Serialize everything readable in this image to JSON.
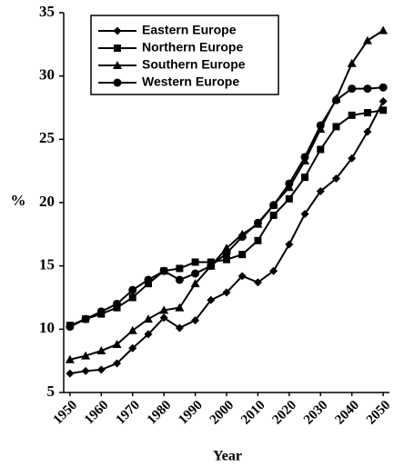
{
  "chart_data": {
    "type": "line",
    "x": [
      1950,
      1955,
      1960,
      1965,
      1970,
      1975,
      1980,
      1985,
      1990,
      1995,
      2000,
      2005,
      2010,
      2015,
      2020,
      2025,
      2030,
      2035,
      2040,
      2045,
      2050
    ],
    "xlabel": "Year",
    "ylabel": "%",
    "xlim": [
      1948,
      2052
    ],
    "xticks": [
      1950,
      1960,
      1970,
      1980,
      1990,
      2000,
      2010,
      2020,
      2030,
      2040,
      2050
    ],
    "ylim": [
      5,
      35
    ],
    "yticks": [
      5,
      10,
      15,
      20,
      25,
      30,
      35
    ],
    "series": [
      {
        "name": "Eastern Europe",
        "color": "#000000",
        "marker": "diamond",
        "values": [
          6.5,
          6.7,
          6.8,
          7.3,
          8.5,
          9.6,
          10.9,
          10.1,
          10.7,
          12.3,
          12.9,
          14.2,
          13.7,
          14.6,
          16.7,
          19.1,
          20.9,
          21.9,
          23.5,
          25.6,
          28.0
        ]
      },
      {
        "name": "Northern Europe",
        "color": "#000000",
        "marker": "square",
        "values": [
          10.3,
          10.8,
          11.2,
          11.7,
          12.5,
          13.6,
          14.6,
          14.8,
          15.3,
          15.3,
          15.5,
          15.9,
          17.0,
          19.0,
          20.3,
          22.0,
          24.2,
          26.0,
          26.9,
          27.1,
          27.3
        ]
      },
      {
        "name": "Southern Europe",
        "color": "#000000",
        "marker": "triangle",
        "values": [
          7.6,
          7.9,
          8.3,
          8.8,
          9.9,
          10.8,
          11.5,
          11.7,
          13.6,
          15.0,
          16.4,
          17.5,
          18.3,
          19.8,
          21.2,
          23.3,
          25.8,
          28.2,
          31.0,
          32.8,
          33.6
        ]
      },
      {
        "name": "Western Europe",
        "color": "#000000",
        "marker": "circle",
        "values": [
          10.2,
          10.8,
          11.4,
          12.0,
          13.1,
          13.9,
          14.6,
          13.9,
          14.4,
          15.0,
          16.0,
          17.3,
          18.4,
          19.8,
          21.5,
          23.6,
          26.1,
          28.1,
          29.0,
          29.0,
          29.1
        ]
      }
    ]
  }
}
